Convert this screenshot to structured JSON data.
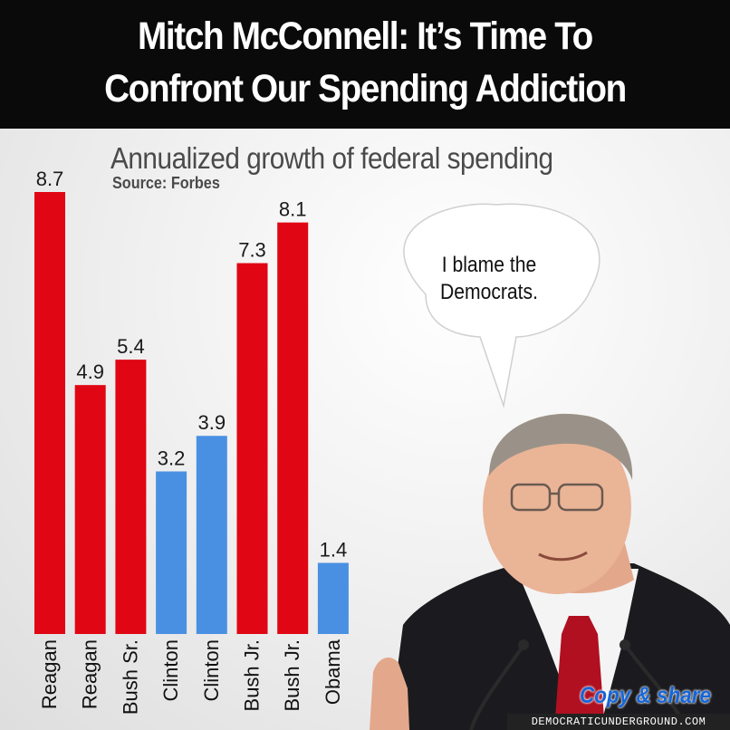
{
  "header": {
    "line1": "Mitch McConnell: It’s Time To",
    "line2": "Confront Our Spending Addiction"
  },
  "chart_data": {
    "type": "bar",
    "title": "Annualized growth of federal spending",
    "subtitle": "Source: Forbes",
    "categories": [
      "Reagan",
      "Reagan",
      "Bush Sr.",
      "Clinton",
      "Clinton",
      "Bush Jr.",
      "Bush Jr.",
      "Obama"
    ],
    "values": [
      8.7,
      4.9,
      5.4,
      3.2,
      3.9,
      7.3,
      8.1,
      1.4
    ],
    "value_labels": [
      "8.7",
      "4.9",
      "5.4",
      "3.2",
      "3.9",
      "7.3",
      "8.1",
      "1.4"
    ],
    "party": [
      "R",
      "R",
      "R",
      "D",
      "D",
      "R",
      "R",
      "D"
    ],
    "colors": {
      "R": "#e00613",
      "D": "#4a90e2"
    },
    "ylim": [
      0,
      8.7
    ],
    "grid": false,
    "legend": "none"
  },
  "speech_bubble": {
    "line1": "I blame the",
    "line2": "Democrats."
  },
  "footer": {
    "copy_share": "Copy & share",
    "watermark": "DEMOCRATICUNDERGROUND.COM"
  }
}
